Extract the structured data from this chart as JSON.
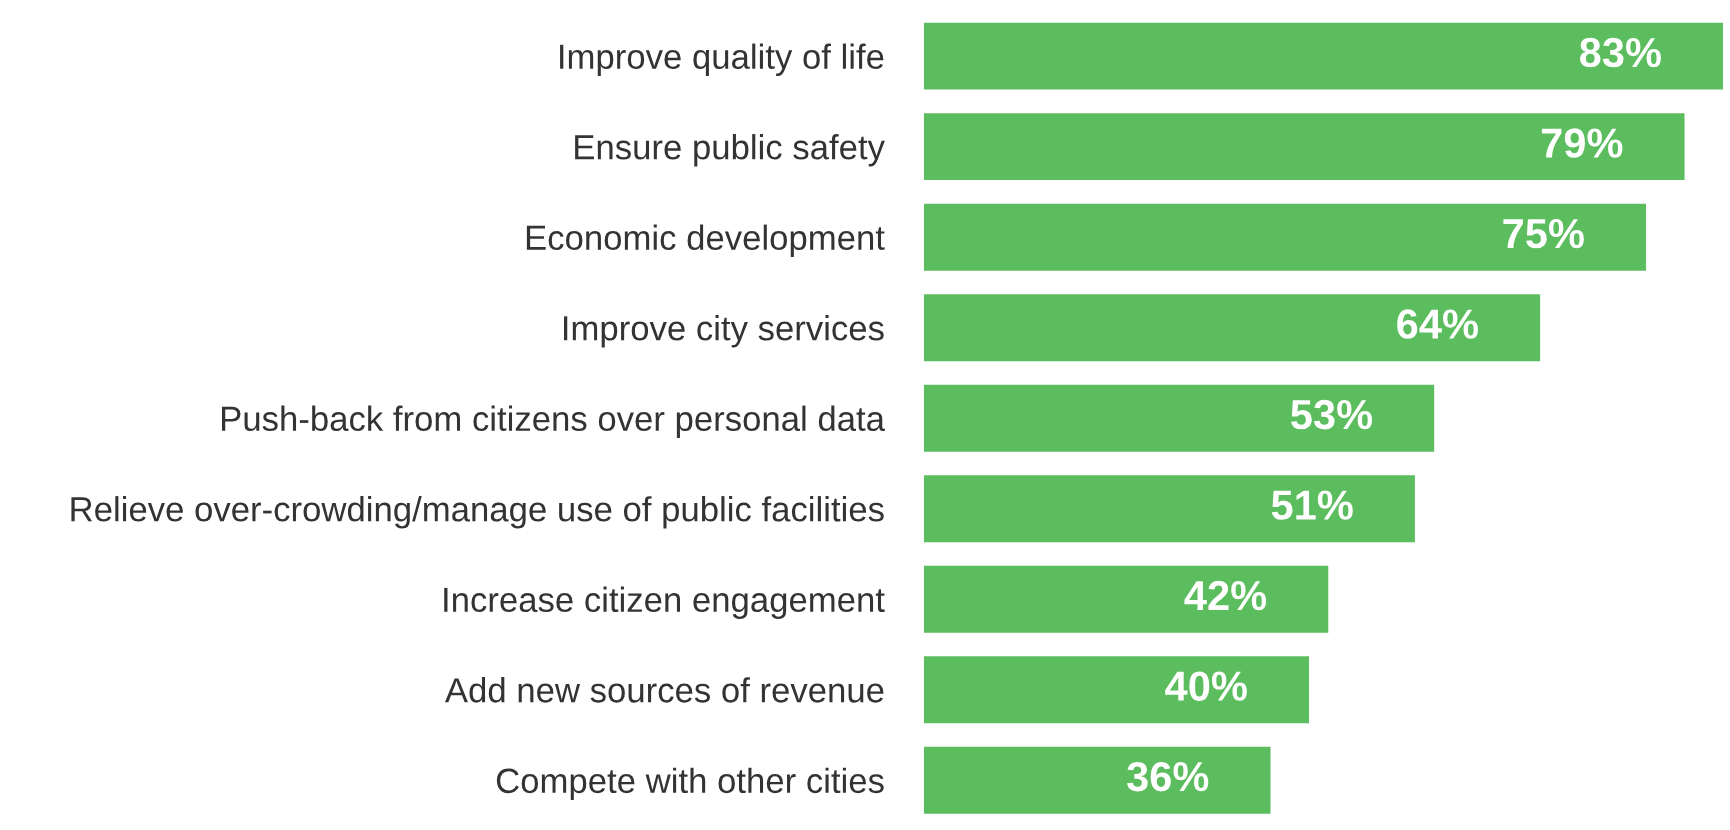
{
  "chart_data": {
    "type": "bar",
    "orientation": "horizontal",
    "categories": [
      "Improve quality of life",
      "Ensure public safety",
      "Economic development",
      "Improve city services",
      "Push-back from citizens over personal data",
      "Relieve over-crowding/manage use of public facilities",
      "Increase citizen engagement",
      "Add new sources of revenue",
      "Compete with other cities"
    ],
    "values": [
      83,
      79,
      75,
      64,
      53,
      51,
      42,
      40,
      36
    ],
    "value_labels": [
      "83%",
      "79%",
      "75%",
      "64%",
      "53%",
      "51%",
      "42%",
      "40%",
      "36%"
    ],
    "color": "#5cbd5f",
    "xlim": [
      0,
      83
    ],
    "grid": false,
    "legend": false,
    "tick_labels": "y"
  }
}
